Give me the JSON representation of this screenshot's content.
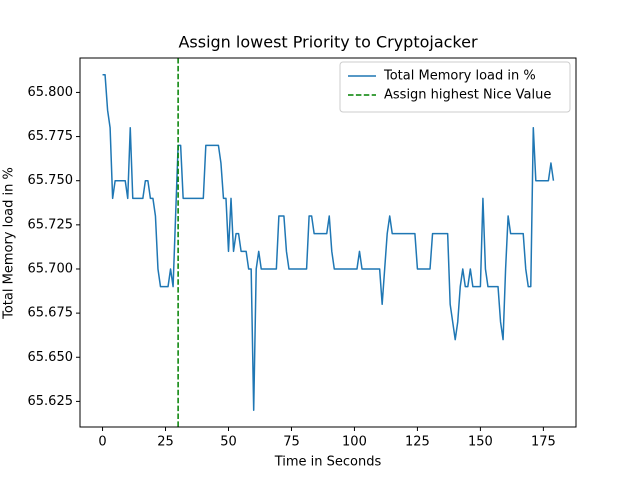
{
  "chart_data": {
    "type": "line",
    "title": "Assign lowest Priority to Cryptojacker",
    "xlabel": "Time in Seconds",
    "ylabel": "Total Memory load in %",
    "x": [
      0,
      1,
      2,
      3,
      4,
      5,
      6,
      7,
      8,
      9,
      10,
      11,
      12,
      13,
      14,
      15,
      16,
      17,
      18,
      19,
      20,
      21,
      22,
      23,
      24,
      25,
      26,
      27,
      28,
      29,
      30,
      31,
      32,
      33,
      34,
      35,
      36,
      37,
      38,
      39,
      40,
      41,
      42,
      43,
      44,
      45,
      46,
      47,
      48,
      49,
      50,
      51,
      52,
      53,
      54,
      55,
      56,
      57,
      58,
      59,
      60,
      61,
      62,
      63,
      64,
      65,
      66,
      67,
      68,
      69,
      70,
      71,
      72,
      73,
      74,
      75,
      76,
      77,
      78,
      79,
      80,
      81,
      82,
      83,
      84,
      85,
      86,
      87,
      88,
      89,
      90,
      91,
      92,
      93,
      94,
      95,
      96,
      97,
      98,
      99,
      100,
      101,
      102,
      103,
      104,
      105,
      106,
      107,
      108,
      109,
      110,
      111,
      112,
      113,
      114,
      115,
      116,
      117,
      118,
      119,
      120,
      121,
      122,
      123,
      124,
      125,
      126,
      127,
      128,
      129,
      130,
      131,
      132,
      133,
      134,
      135,
      136,
      137,
      138,
      139,
      140,
      141,
      142,
      143,
      144,
      145,
      146,
      147,
      148,
      149,
      150,
      151,
      152,
      153,
      154,
      155,
      156,
      157,
      158,
      159,
      160,
      161,
      162,
      163,
      164,
      165,
      166,
      167,
      168,
      169,
      170,
      171,
      172,
      173,
      174,
      175,
      176,
      177,
      178,
      179
    ],
    "series": [
      {
        "name": "Total Memory load in %",
        "color": "#1f77b4",
        "values": [
          65.81,
          65.81,
          65.79,
          65.78,
          65.74,
          65.75,
          65.75,
          65.75,
          65.75,
          65.75,
          65.74,
          65.78,
          65.74,
          65.74,
          65.74,
          65.74,
          65.74,
          65.75,
          65.75,
          65.74,
          65.74,
          65.73,
          65.7,
          65.69,
          65.69,
          65.69,
          65.69,
          65.7,
          65.69,
          65.73,
          65.77,
          65.77,
          65.74,
          65.74,
          65.74,
          65.74,
          65.74,
          65.74,
          65.74,
          65.74,
          65.74,
          65.77,
          65.77,
          65.77,
          65.77,
          65.77,
          65.77,
          65.76,
          65.74,
          65.74,
          65.71,
          65.74,
          65.71,
          65.72,
          65.72,
          65.71,
          65.71,
          65.71,
          65.7,
          65.7,
          65.62,
          65.7,
          65.71,
          65.7,
          65.7,
          65.7,
          65.7,
          65.7,
          65.7,
          65.7,
          65.73,
          65.73,
          65.73,
          65.71,
          65.7,
          65.7,
          65.7,
          65.7,
          65.7,
          65.7,
          65.7,
          65.7,
          65.73,
          65.73,
          65.72,
          65.72,
          65.72,
          65.72,
          65.72,
          65.72,
          65.73,
          65.71,
          65.7,
          65.7,
          65.7,
          65.7,
          65.7,
          65.7,
          65.7,
          65.7,
          65.7,
          65.7,
          65.71,
          65.7,
          65.7,
          65.7,
          65.7,
          65.7,
          65.7,
          65.7,
          65.7,
          65.68,
          65.7,
          65.72,
          65.73,
          65.72,
          65.72,
          65.72,
          65.72,
          65.72,
          65.72,
          65.72,
          65.72,
          65.72,
          65.72,
          65.7,
          65.7,
          65.7,
          65.7,
          65.7,
          65.7,
          65.72,
          65.72,
          65.72,
          65.72,
          65.72,
          65.72,
          65.72,
          65.68,
          65.67,
          65.66,
          65.67,
          65.69,
          65.7,
          65.69,
          65.69,
          65.7,
          65.69,
          65.69,
          65.69,
          65.69,
          65.74,
          65.7,
          65.69,
          65.69,
          65.69,
          65.69,
          65.69,
          65.67,
          65.66,
          65.7,
          65.73,
          65.72,
          65.72,
          65.72,
          65.72,
          65.72,
          65.72,
          65.7,
          65.69,
          65.69,
          65.78,
          65.75,
          65.75,
          65.75,
          65.75,
          65.75,
          65.75,
          65.76,
          65.75
        ]
      }
    ],
    "vlines": [
      {
        "x": 30,
        "name": "Assign highest Nice Value",
        "color": "green"
      }
    ],
    "xlim": [
      -8.95,
      187.95
    ],
    "xticks": [
      0,
      25,
      50,
      75,
      100,
      125,
      150,
      175
    ],
    "ylim": [
      65.6105,
      65.8195
    ],
    "yticks": [
      65.625,
      {
        "value": 65.65,
        "label": "65.650"
      },
      65.675,
      {
        "value": 65.7,
        "label": "65.700"
      },
      65.725,
      {
        "value": 65.75,
        "label": "65.750"
      },
      65.775,
      {
        "value": 65.8,
        "label": "65.800"
      }
    ],
    "legend": "upper right"
  }
}
